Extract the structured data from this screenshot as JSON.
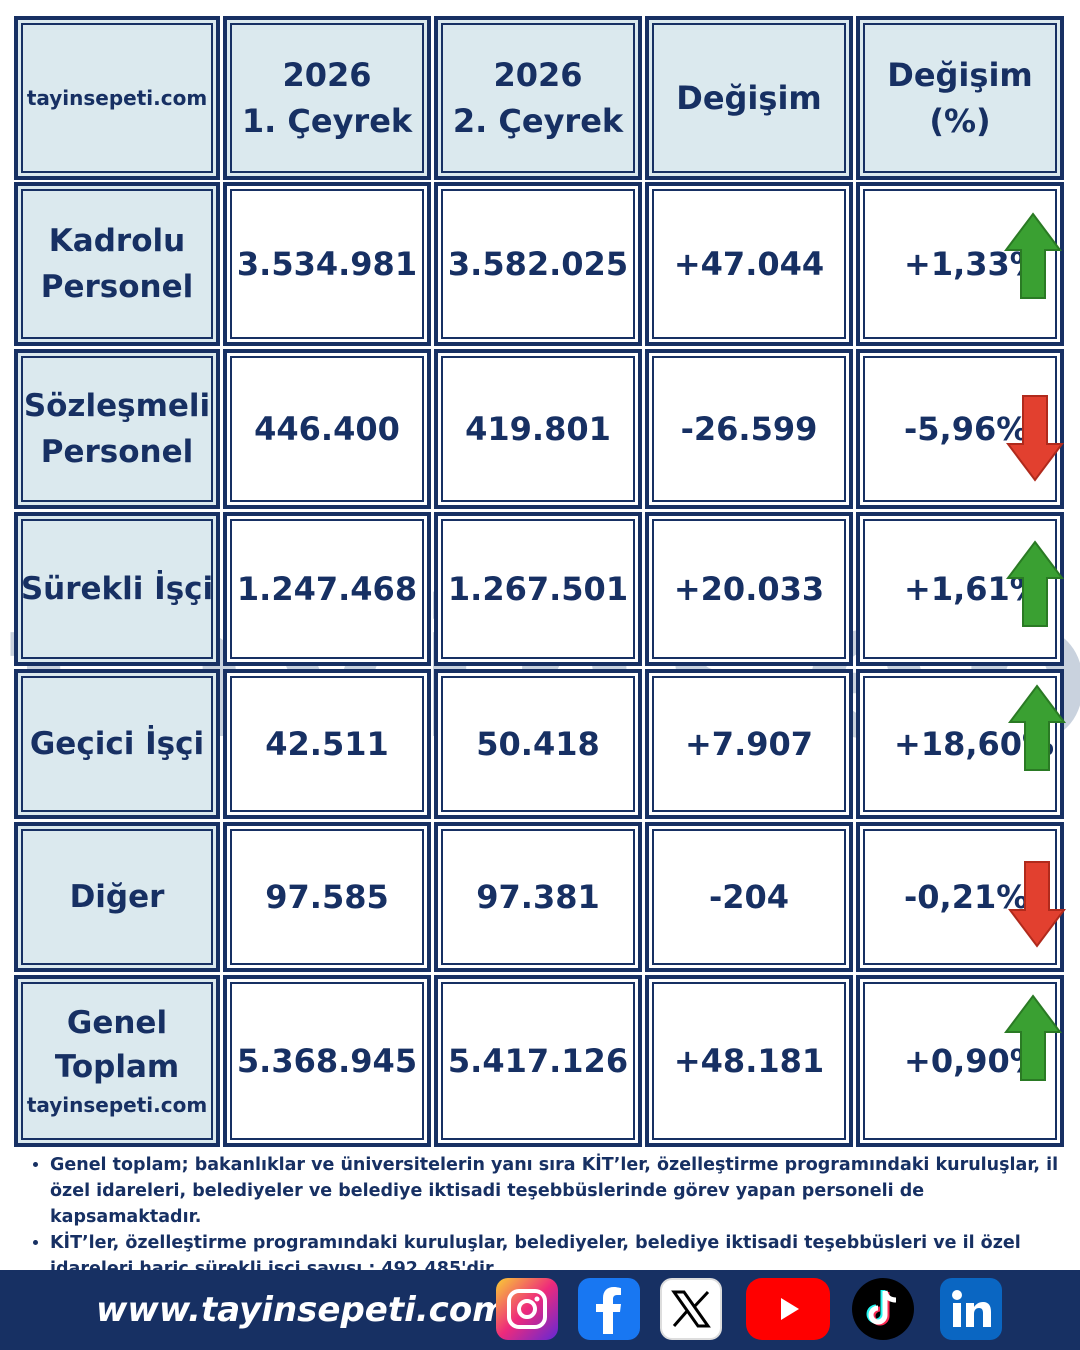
{
  "header": {
    "brand": "tayinsepeti.com",
    "col1": [
      "2026",
      "1. Çeyrek"
    ],
    "col2": [
      "2026",
      "2. Çeyrek"
    ],
    "col3": "Değişim",
    "col4": [
      "Değişim",
      "(%)"
    ]
  },
  "rows": [
    {
      "label": [
        "Kadrolu",
        "Personel"
      ],
      "q1": "3.534.981",
      "q2": "3.582.025",
      "change": "+47.044",
      "pct": "+1,33%",
      "trend": "up"
    },
    {
      "label": [
        "Sözleşmeli",
        "Personel"
      ],
      "q1": "446.400",
      "q2": "419.801",
      "change": "-26.599",
      "pct": "-5,96%",
      "trend": "down"
    },
    {
      "label": [
        "Sürekli İşçi"
      ],
      "q1": "1.247.468",
      "q2": "1.267.501",
      "change": "+20.033",
      "pct": "+1,61%",
      "trend": "up"
    },
    {
      "label": [
        "Geçici İşçi"
      ],
      "q1": "42.511",
      "q2": "50.418",
      "change": "+7.907",
      "pct": "+18,60%",
      "trend": "up"
    },
    {
      "label": [
        "Diğer"
      ],
      "q1": "97.585",
      "q2": "97.381",
      "change": "-204",
      "pct": "-0,21%",
      "trend": "down"
    },
    {
      "label": [
        "Genel",
        "Toplam"
      ],
      "label_brand": "tayinsepeti.com",
      "q1": "5.368.945",
      "q2": "5.417.126",
      "change": "+48.181",
      "pct": "+0,90%",
      "trend": "up"
    }
  ],
  "watermark": "tayinsepeti",
  "notes": [
    "Genel toplam; bakanlıklar ve üniversitelerin yanı sıra KİT’ler, özelleştirme programındaki kuruluşlar, il özel idareleri, belediyeler ve belediye iktisadi teşebbüslerinde görev yapan personeli de kapsamaktadır.",
    "KİT’ler, özelleştirme programındaki kuruluşlar, belediyeler, belediye iktisadi teşebbüsleri ve il özel idareleri hariç sürekli işçi sayısı : 492.485'dir."
  ],
  "footer": {
    "site": "www.tayinsepeti.com",
    "social_icons": [
      "instagram-icon",
      "facebook-icon",
      "x-icon",
      "youtube-icon",
      "tiktok-icon",
      "linkedin-icon"
    ]
  },
  "colors": {
    "navy": "#173063",
    "header_bg": "#dbe9ee",
    "up": "#3aa032",
    "down": "#e2402f"
  }
}
